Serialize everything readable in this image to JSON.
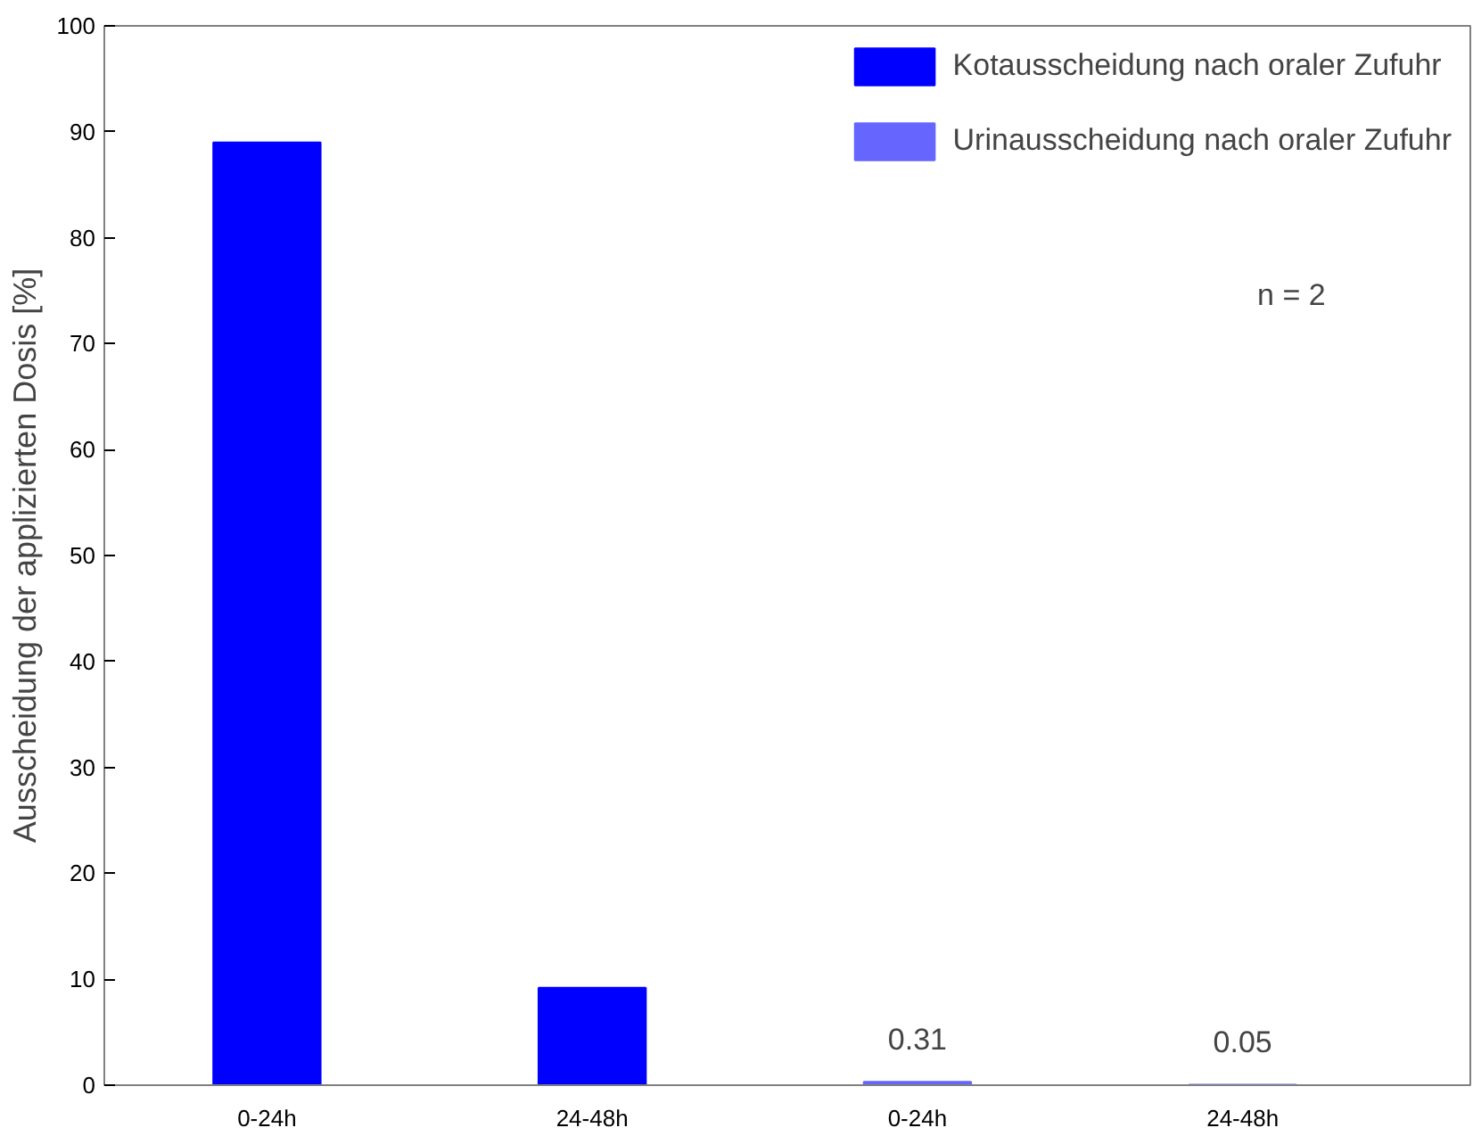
{
  "chart_data": {
    "type": "bar",
    "ylabel": "Ausscheidung der applizierten Dosis [%]",
    "categories": [
      "0-24h",
      "24-48h",
      "0-24h",
      "24-48h"
    ],
    "series": [
      {
        "name": "Kotausscheidung nach oraler Zufuhr",
        "color": "#0000ff",
        "values": [
          89,
          9.2,
          null,
          null
        ]
      },
      {
        "name": "Urinausscheidung nach oraler Zufuhr",
        "color": "#6666ff",
        "values": [
          null,
          null,
          0.31,
          0.05
        ],
        "value_labels": [
          null,
          null,
          "0.31",
          "0.05"
        ]
      }
    ],
    "ylim": [
      0,
      100
    ],
    "yticks": [
      0,
      10,
      20,
      30,
      40,
      50,
      60,
      70,
      80,
      90,
      100
    ],
    "grid": false,
    "legend": "top right",
    "annotations": [
      "n = 2"
    ]
  }
}
